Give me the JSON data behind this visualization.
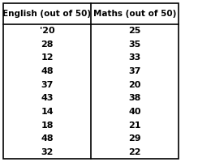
{
  "col1_header": "English (out of 50)",
  "col2_header": "Maths (out of 50)",
  "english": [
    "'20",
    "28",
    "12",
    "48",
    "37",
    "43",
    "14",
    "18",
    "48",
    "32"
  ],
  "maths": [
    "25",
    "35",
    "33",
    "37",
    "20",
    "38",
    "40",
    "21",
    "29",
    "22"
  ],
  "header_fontsize": 7.5,
  "data_fontsize": 8.0,
  "bg_color": "#ffffff",
  "border_color": "#000000",
  "line_color": "#000000"
}
